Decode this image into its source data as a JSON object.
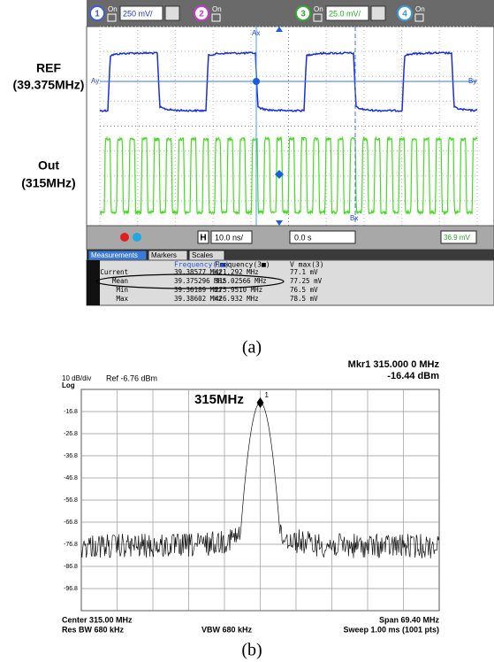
{
  "signal_labels": [
    {
      "name": "REF",
      "freq": "(39.375MHz)"
    },
    {
      "name": "Out",
      "freq": "(315MHz)"
    }
  ],
  "scope": {
    "channels": [
      {
        "number": "1",
        "state": "On",
        "scale": "250 mV/"
      },
      {
        "number": "2",
        "state": "On"
      },
      {
        "number": "3",
        "state": "On",
        "scale": "25.0 mV/"
      },
      {
        "number": "4",
        "state": "On"
      }
    ],
    "markers": {
      "ax": "Ax",
      "bx": "Bx",
      "ay": "Ay",
      "by": "By"
    },
    "controls": {
      "h": "H",
      "timebase": "10.0 ns/",
      "delay": "0.0 s",
      "trigger": "36.9 mV"
    },
    "tabs": [
      "Measurements",
      "Markers",
      "Scales"
    ],
    "table": {
      "headers": [
        "Frequency(1■)",
        "Frequency(3■)",
        "V max(3)"
      ],
      "rows": [
        [
          "Current",
          "39.38577 MHz",
          "421.292 MHz",
          "77.1 mV"
        ],
        [
          "Mean",
          "39.375296 MHz",
          "315.02566 MHz",
          "77.25 mV"
        ],
        [
          "Min",
          "39.36189 MHz",
          "275.9510 MHz",
          "76.5 mV"
        ],
        [
          "Max",
          "39.38602 MHz",
          "426.932 MHz",
          "78.5 mV"
        ]
      ]
    }
  },
  "caption_a": "(a)",
  "spectrum": {
    "scale": "10 dB/div",
    "log": "Log",
    "ref": "Ref -6.76 dBm",
    "marker": "Mkr1 315.000 0 MHz",
    "marker_level": "-16.44 dBm",
    "peak_label": "315MHz",
    "marker_number": "1",
    "y_labels": [
      "-16.8",
      "-26.8",
      "-36.8",
      "-46.8",
      "-56.8",
      "-66.8",
      "-76.8",
      "-86.8",
      "-96.8"
    ],
    "center": "Center 315.00 MHz",
    "res_bw": "Res BW 680 kHz",
    "vbw": "VBW 680 kHz",
    "span": "Span 69.40 MHz",
    "sweep": "Sweep  1.00 ms (1001 pts)"
  },
  "caption_b": "(b)"
}
